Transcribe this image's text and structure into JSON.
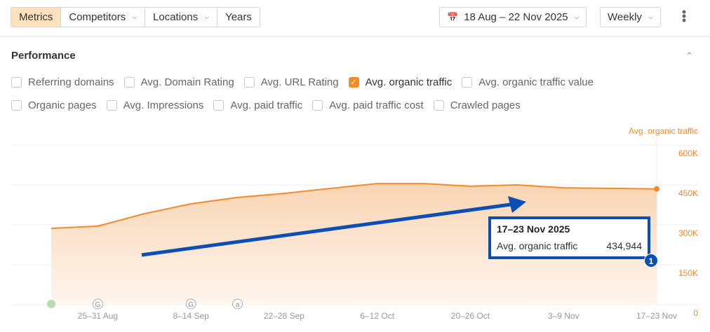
{
  "toolbar": {
    "tabs": [
      {
        "label": "Metrics",
        "active": true
      },
      {
        "label": "Competitors",
        "dropdown": true
      },
      {
        "label": "Locations",
        "dropdown": true
      },
      {
        "label": "Years"
      }
    ],
    "date_range": "18 Aug – 22 Nov 2025",
    "granularity": "Weekly",
    "calendar_icon": "calendar-icon",
    "more_icon": "more-vertical-icon"
  },
  "section": {
    "title": "Performance",
    "collapse_icon": "chevron-up-icon"
  },
  "metrics_row1": [
    {
      "label": "Referring domains",
      "checked": false
    },
    {
      "label": "Avg. Domain Rating",
      "checked": false
    },
    {
      "label": "Avg. URL Rating",
      "checked": false
    },
    {
      "label": "Avg. organic traffic",
      "checked": true
    },
    {
      "label": "Avg. organic traffic value",
      "checked": false
    }
  ],
  "metrics_row2": [
    {
      "label": "Organic pages",
      "checked": false
    },
    {
      "label": "Avg. Impressions",
      "checked": false
    },
    {
      "label": "Avg. paid traffic",
      "checked": false
    },
    {
      "label": "Avg. paid traffic cost",
      "checked": false
    },
    {
      "label": "Crawled pages",
      "checked": false
    }
  ],
  "chart_data": {
    "type": "area",
    "ylabel": "Avg. organic traffic",
    "ylim": [
      0,
      600000
    ],
    "yticks": [
      "0",
      "150K",
      "300K",
      "450K",
      "600K"
    ],
    "xtick_labels": [
      "25–31 Aug",
      "8–14 Sep",
      "22–28 Sep",
      "6–12 Oct",
      "20–26 Oct",
      "3–9 Nov",
      "17–23 Nov"
    ],
    "x": [
      "18–24 Aug",
      "25–31 Aug",
      "1–7 Sep",
      "8–14 Sep",
      "15–21 Sep",
      "22–28 Sep",
      "29 Sep–5 Oct",
      "6–12 Oct",
      "13–19 Oct",
      "20–26 Oct",
      "27 Oct–2 Nov",
      "3–9 Nov",
      "10–16 Nov",
      "17–23 Nov"
    ],
    "values": [
      287000,
      295000,
      342000,
      379000,
      403000,
      418000,
      437000,
      455000,
      455000,
      445000,
      450000,
      439000,
      437000,
      434944
    ],
    "color": "#f5892b",
    "grid": true,
    "annotations": [
      {
        "week": "18–24 Aug",
        "type": "green-dot"
      },
      {
        "week": "25–31 Aug",
        "label": "G"
      },
      {
        "week": "8–14 Sep",
        "label": "G"
      },
      {
        "week": "15–21 Sep",
        "label": "a"
      }
    ]
  },
  "tooltip": {
    "date": "17–23 Nov 2025",
    "metric": "Avg. organic traffic",
    "value": "434,944"
  },
  "callout": {
    "badge": "1",
    "color": "#0b4fb4"
  }
}
